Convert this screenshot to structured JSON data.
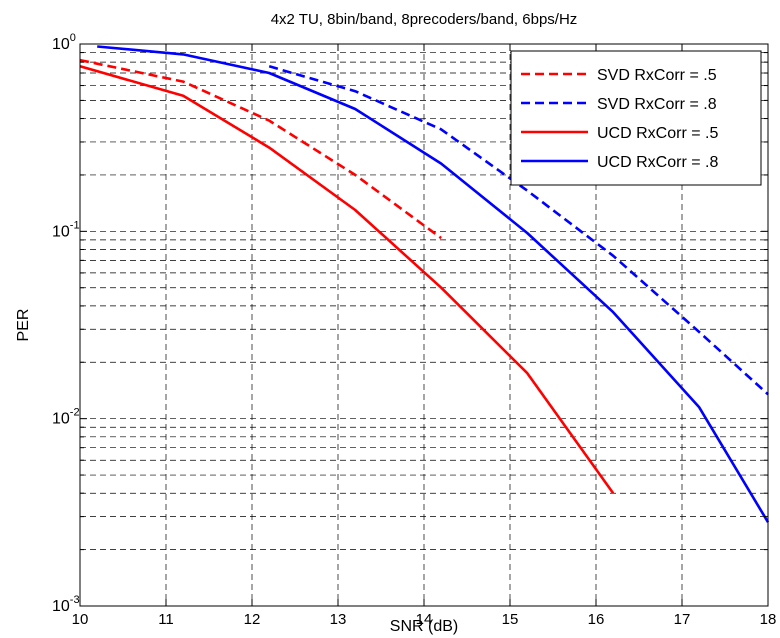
{
  "chart_data": {
    "type": "line",
    "title": "4x2 TU, 8bin/band, 8precoders/band, 6bps/Hz",
    "xlabel": "SNR (dB)",
    "ylabel": "PER",
    "xlim": [
      10,
      18
    ],
    "ylim": [
      0.001,
      1
    ],
    "yscale": "log",
    "grid": true,
    "grid_style": "dashed",
    "legend_position": "top-right",
    "x_ticks": [
      "10",
      "11",
      "12",
      "13",
      "14",
      "15",
      "16",
      "17",
      "18"
    ],
    "y_ticks": [
      {
        "base": "10",
        "exp": "-3"
      },
      {
        "base": "10",
        "exp": "-2"
      },
      {
        "base": "10",
        "exp": "-1"
      },
      {
        "base": "10",
        "exp": "0"
      }
    ],
    "series": [
      {
        "name": "SVD RxCorr = .5",
        "color": "#ff0000",
        "dash": "dashed",
        "x": [
          10,
          11.2,
          12.2,
          13.2,
          14.2
        ],
        "y": [
          0.82,
          0.63,
          0.39,
          0.2,
          0.092
        ]
      },
      {
        "name": "SVD RxCorr = .8",
        "color": "#0000ff",
        "dash": "dashed",
        "x": [
          12.2,
          13.2,
          14.2,
          15.2,
          16.2,
          17.2,
          18
        ],
        "y": [
          0.76,
          0.56,
          0.35,
          0.165,
          0.074,
          0.029,
          0.0135
        ]
      },
      {
        "name": "UCD RxCorr = .5",
        "color": "#ff0000",
        "dash": "solid",
        "x": [
          10,
          11.2,
          12.2,
          13.2,
          14.2,
          15.2,
          16.2
        ],
        "y": [
          0.76,
          0.53,
          0.28,
          0.13,
          0.05,
          0.0175,
          0.004
        ]
      },
      {
        "name": "UCD RxCorr = .8",
        "color": "#0000ff",
        "dash": "solid",
        "x": [
          10.2,
          11.2,
          12.2,
          13.2,
          14.2,
          15.2,
          16.2,
          17.2,
          18
        ],
        "y": [
          0.97,
          0.88,
          0.7,
          0.45,
          0.23,
          0.098,
          0.037,
          0.0115,
          0.0028
        ]
      }
    ]
  }
}
